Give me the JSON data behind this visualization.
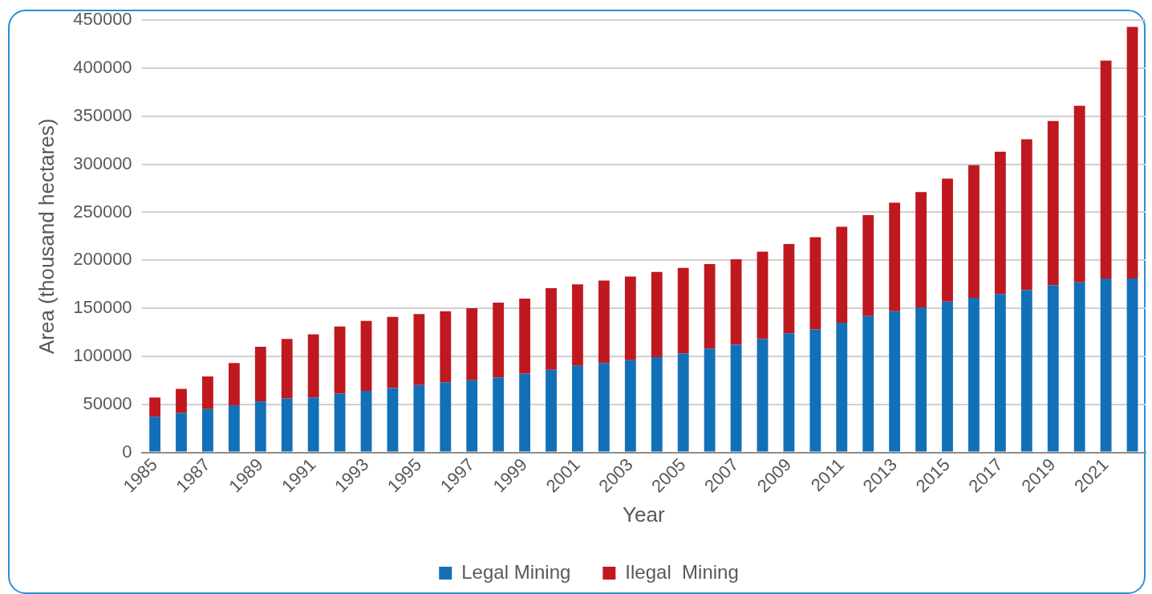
{
  "chart_data": {
    "type": "bar",
    "stacked": true,
    "xlabel": "Year",
    "ylabel": "Area (thousand hectares)",
    "categories": [
      "1985",
      null,
      "1987",
      null,
      "1989",
      null,
      "1991",
      null,
      "1993",
      null,
      "1995",
      null,
      "1997",
      null,
      "1999",
      null,
      "2001",
      null,
      "2003",
      null,
      "2005",
      null,
      "2007",
      null,
      "2009",
      null,
      "2011",
      null,
      "2013",
      null,
      "2015",
      null,
      "2017",
      null,
      "2019",
      null,
      "2021",
      null
    ],
    "series": [
      {
        "name": "Legal Mining",
        "color": "#1170b8",
        "values": [
          37000,
          41000,
          45000,
          49000,
          53000,
          56000,
          57000,
          61000,
          64000,
          67000,
          70000,
          73000,
          75000,
          78000,
          82000,
          86000,
          90000,
          93000,
          96000,
          99000,
          103000,
          108000,
          112000,
          118000,
          124000,
          128000,
          135000,
          142000,
          147000,
          151000,
          157000,
          161000,
          165000,
          169000,
          174000,
          177000,
          181000,
          181000
        ]
      },
      {
        "name": "Ilegal  Mining",
        "color": "#c0181f",
        "values": [
          20000,
          25000,
          34000,
          44000,
          57000,
          62000,
          66000,
          70000,
          73000,
          74000,
          74000,
          74000,
          75000,
          78000,
          78000,
          85000,
          85000,
          86000,
          87000,
          89000,
          89000,
          88000,
          89000,
          91000,
          93000,
          96000,
          100000,
          105000,
          113000,
          120000,
          128000,
          138000,
          148000,
          157000,
          171000,
          184000,
          227000,
          262000
        ]
      }
    ],
    "ylim": [
      0,
      450000
    ],
    "yticks": [
      0,
      50000,
      100000,
      150000,
      200000,
      250000,
      300000,
      350000,
      400000,
      450000
    ],
    "grid": "y",
    "legend": "bottom"
  }
}
